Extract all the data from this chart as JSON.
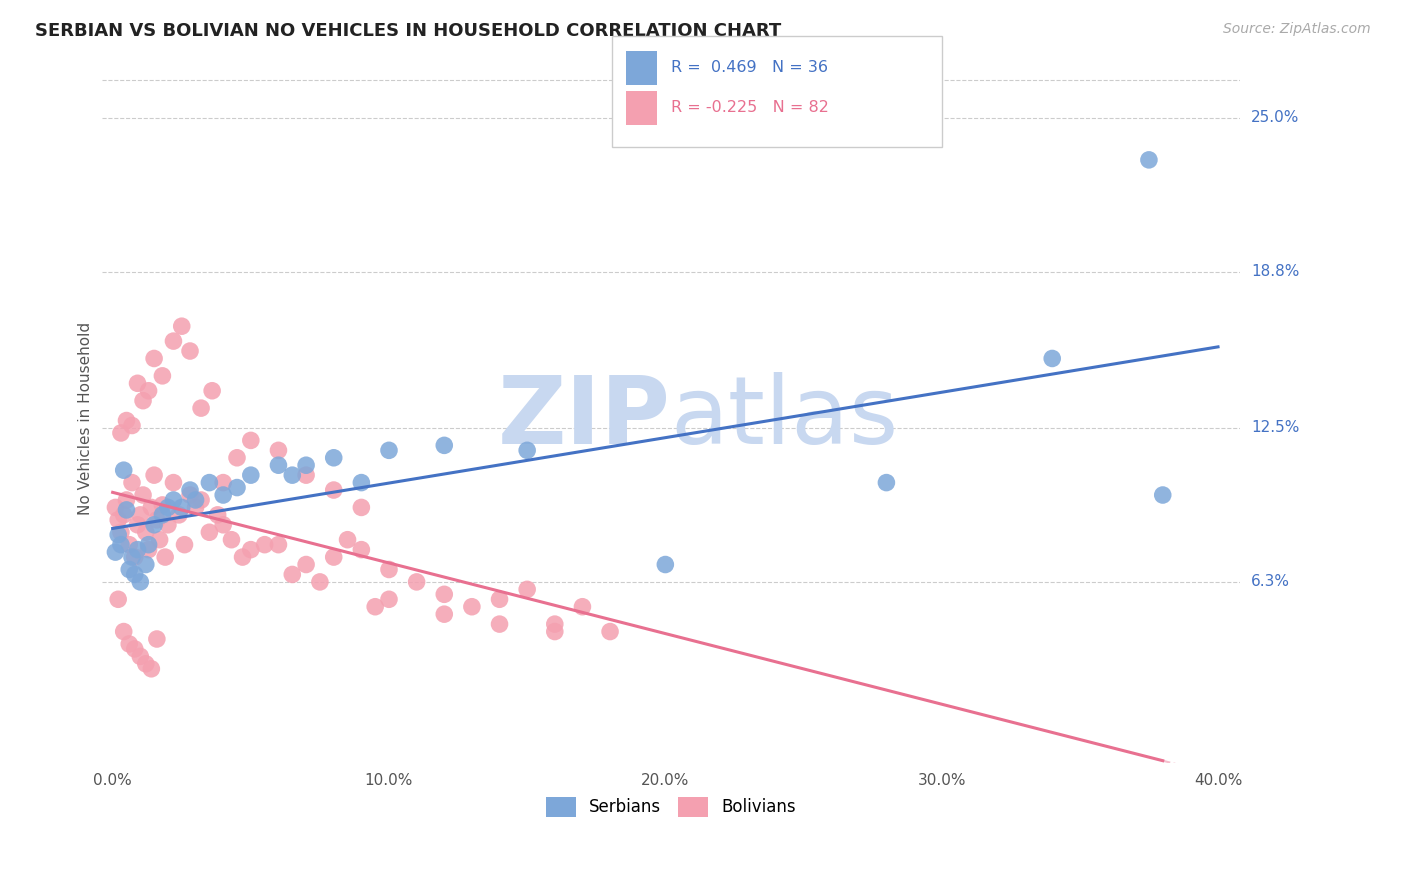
{
  "title": "SERBIAN VS BOLIVIAN NO VEHICLES IN HOUSEHOLD CORRELATION CHART",
  "source": "Source: ZipAtlas.com",
  "ylabel": "No Vehicles in Household",
  "ytick_labels": [
    "6.3%",
    "12.5%",
    "18.8%",
    "25.0%"
  ],
  "ytick_values": [
    0.063,
    0.125,
    0.188,
    0.25
  ],
  "xmin": 0.0,
  "xmax": 0.4,
  "ymin": -0.01,
  "ymax": 0.268,
  "serbian_R": 0.469,
  "serbian_N": 36,
  "bolivian_R": -0.225,
  "bolivian_N": 82,
  "serbian_color": "#7da7d9",
  "bolivian_color": "#f4a0b0",
  "serbian_line_color": "#4472c4",
  "bolivian_line_color": "#e87090",
  "watermark_color": "#c8d8f0",
  "background_color": "#ffffff",
  "grid_color": "#cccccc",
  "serbian_x": [
    0.001,
    0.002,
    0.003,
    0.004,
    0.005,
    0.006,
    0.007,
    0.008,
    0.009,
    0.01,
    0.012,
    0.013,
    0.015,
    0.018,
    0.02,
    0.022,
    0.025,
    0.028,
    0.03,
    0.035,
    0.04,
    0.045,
    0.05,
    0.06,
    0.065,
    0.07,
    0.08,
    0.09,
    0.1,
    0.12,
    0.15,
    0.2,
    0.28,
    0.34,
    0.375,
    0.38
  ],
  "serbian_y": [
    0.075,
    0.082,
    0.078,
    0.108,
    0.092,
    0.068,
    0.073,
    0.066,
    0.076,
    0.063,
    0.07,
    0.078,
    0.086,
    0.09,
    0.093,
    0.096,
    0.093,
    0.1,
    0.096,
    0.103,
    0.098,
    0.101,
    0.106,
    0.11,
    0.106,
    0.11,
    0.113,
    0.103,
    0.116,
    0.118,
    0.116,
    0.07,
    0.103,
    0.153,
    0.233,
    0.098
  ],
  "bolivian_x": [
    0.001,
    0.002,
    0.003,
    0.004,
    0.005,
    0.006,
    0.007,
    0.008,
    0.009,
    0.01,
    0.011,
    0.012,
    0.013,
    0.014,
    0.015,
    0.016,
    0.017,
    0.018,
    0.019,
    0.02,
    0.022,
    0.024,
    0.026,
    0.028,
    0.03,
    0.032,
    0.035,
    0.038,
    0.04,
    0.043,
    0.047,
    0.05,
    0.055,
    0.06,
    0.065,
    0.07,
    0.075,
    0.08,
    0.085,
    0.09,
    0.095,
    0.1,
    0.11,
    0.12,
    0.13,
    0.14,
    0.15,
    0.16,
    0.17,
    0.18,
    0.003,
    0.005,
    0.007,
    0.009,
    0.011,
    0.013,
    0.015,
    0.018,
    0.022,
    0.025,
    0.028,
    0.032,
    0.036,
    0.04,
    0.045,
    0.05,
    0.06,
    0.07,
    0.08,
    0.09,
    0.1,
    0.12,
    0.14,
    0.16,
    0.002,
    0.004,
    0.006,
    0.008,
    0.01,
    0.012,
    0.014,
    0.016
  ],
  "bolivian_y": [
    0.093,
    0.088,
    0.083,
    0.09,
    0.096,
    0.078,
    0.103,
    0.073,
    0.086,
    0.09,
    0.098,
    0.083,
    0.076,
    0.093,
    0.106,
    0.088,
    0.08,
    0.094,
    0.073,
    0.086,
    0.103,
    0.09,
    0.078,
    0.098,
    0.093,
    0.096,
    0.083,
    0.09,
    0.086,
    0.08,
    0.073,
    0.076,
    0.078,
    0.078,
    0.066,
    0.07,
    0.063,
    0.073,
    0.08,
    0.076,
    0.053,
    0.068,
    0.063,
    0.058,
    0.053,
    0.056,
    0.06,
    0.046,
    0.053,
    0.043,
    0.123,
    0.128,
    0.126,
    0.143,
    0.136,
    0.14,
    0.153,
    0.146,
    0.16,
    0.166,
    0.156,
    0.133,
    0.14,
    0.103,
    0.113,
    0.12,
    0.116,
    0.106,
    0.1,
    0.093,
    0.056,
    0.05,
    0.046,
    0.043,
    0.056,
    0.043,
    0.038,
    0.036,
    0.033,
    0.03,
    0.028,
    0.04
  ]
}
